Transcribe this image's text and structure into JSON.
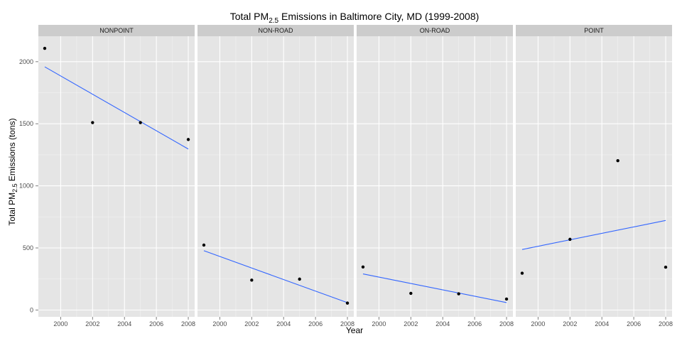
{
  "chart_data": {
    "type": "scatter",
    "title": {
      "prefix": "Total PM",
      "subscript": "2.5",
      "suffix": " Emissions in Baltimore City, MD (1999-2008)"
    },
    "xlabel": "Year",
    "ylabel": {
      "prefix": "Total PM",
      "subscript": "2.5",
      "suffix": " Emissions (tons)"
    },
    "xlim": [
      1998.6,
      2008.4
    ],
    "ylim": [
      -55,
      2205
    ],
    "x_ticks": [
      2000,
      2002,
      2004,
      2006,
      2008
    ],
    "y_ticks": [
      0,
      500,
      1000,
      1500,
      2000
    ],
    "grid": true,
    "point_color": "#000000",
    "line_color": "#3366ff",
    "panel_background": "#e5e5e5",
    "strip_background": "#cccccc",
    "panels": [
      {
        "name": "NONPOINT",
        "x": [
          1999,
          2002,
          2005,
          2008
        ],
        "y": [
          2107.6,
          1509.5,
          1509.5,
          1373.2
        ],
        "fit": [
          [
            1999,
            1958.6
          ],
          [
            2008,
            1296.6
          ]
        ]
      },
      {
        "name": "NON-ROAD",
        "x": [
          1999,
          2002,
          2005,
          2008
        ],
        "y": [
          522.9,
          240.8,
          248.9,
          55.8
        ],
        "fit": [
          [
            1999,
            477.6
          ],
          [
            2008,
            59.6
          ]
        ]
      },
      {
        "name": "ON-ROAD",
        "x": [
          1999,
          2002,
          2005,
          2008
        ],
        "y": [
          346.8,
          134.3,
          130.4,
          88.3
        ],
        "fit": [
          [
            1999,
            290.9
          ],
          [
            2008,
            59.6
          ]
        ]
      },
      {
        "name": "POINT",
        "x": [
          1999,
          2002,
          2005,
          2008
        ],
        "y": [
          296.8,
          569.3,
          1202.5,
          344.9
        ],
        "fit": [
          [
            1999,
            487.5
          ],
          [
            2008,
            721.3
          ]
        ]
      }
    ]
  }
}
